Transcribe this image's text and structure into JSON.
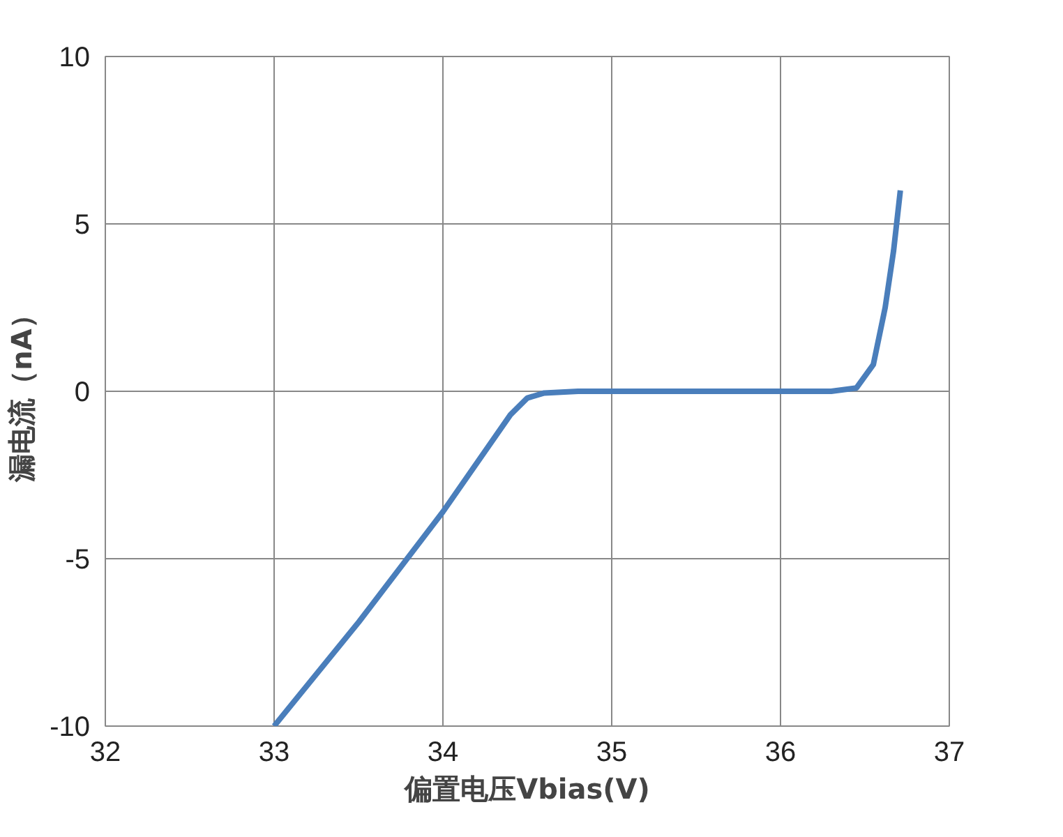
{
  "chart_data": {
    "type": "line",
    "xlabel": "偏置电压Vbias(V)",
    "ylabel": "漏电流（nA）",
    "xlim": [
      32,
      37
    ],
    "ylim": [
      -10,
      10
    ],
    "xticks": [
      32,
      33,
      34,
      35,
      36,
      37
    ],
    "yticks": [
      -10,
      -5,
      0,
      5,
      10
    ],
    "grid": true,
    "line_style": "solid",
    "series": [
      {
        "color": "#4a7ebb",
        "x": [
          33,
          33.5,
          34,
          34.4,
          34.5,
          34.6,
          34.8,
          36.3,
          36.45,
          36.55,
          36.62,
          36.67,
          36.71
        ],
        "values": [
          -10,
          -6.9,
          -3.6,
          -0.7,
          -0.2,
          -0.05,
          0,
          0,
          0.1,
          0.8,
          2.5,
          4.2,
          6
        ]
      }
    ]
  }
}
